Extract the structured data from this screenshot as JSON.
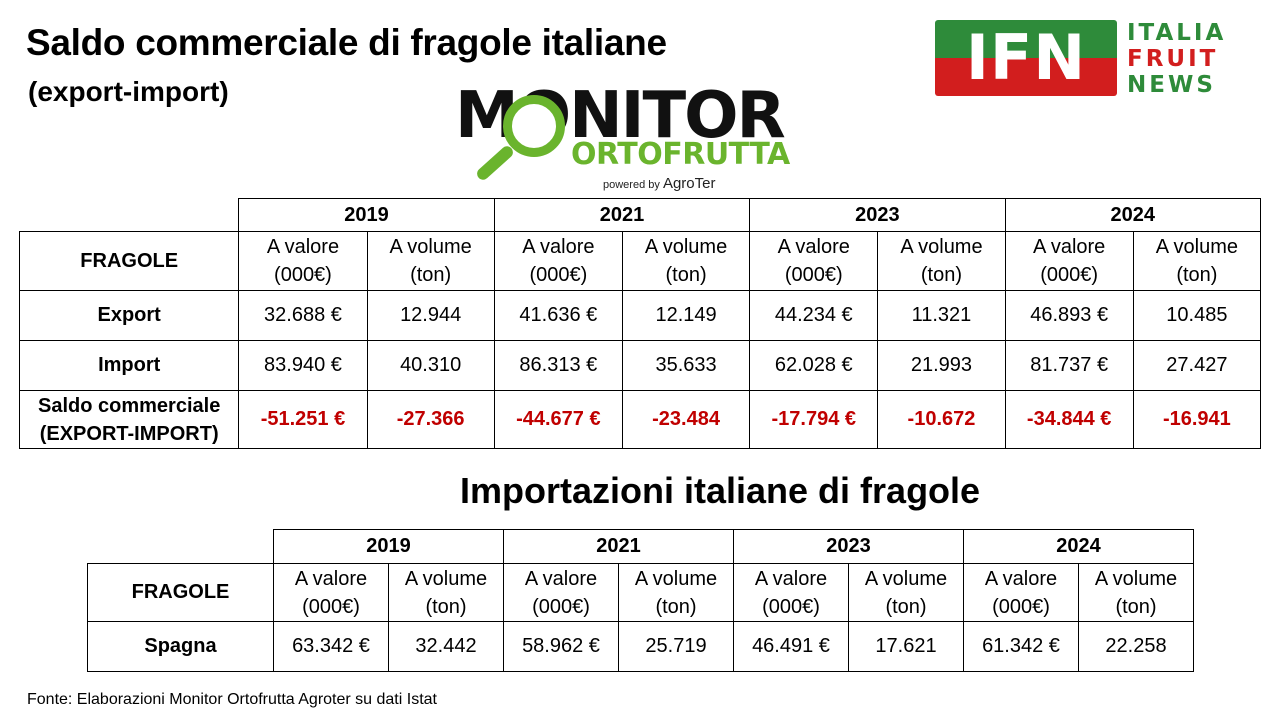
{
  "title": "Saldo commerciale di fragole italiane",
  "subtitle": "(export-import)",
  "ifn_logo": {
    "letters": "IFN",
    "words": [
      "ITALIA",
      "FRUIT",
      "NEWS"
    ],
    "colors": {
      "green": "#2e8b3a",
      "red": "#d21e1e"
    }
  },
  "monitor_logo": {
    "word": "MONITOR",
    "sub": "ORTOFRUTTA",
    "powered_prefix": "powered by",
    "powered_brand": "AgroTer",
    "color": "#6ab42d"
  },
  "table1": {
    "years": [
      "2019",
      "2021",
      "2023",
      "2024"
    ],
    "row_header": "FRAGOLE",
    "col_value": [
      "A valore",
      "(000€)"
    ],
    "col_volume": [
      "A volume",
      "(ton)"
    ],
    "rows": [
      {
        "label": [
          "Export"
        ],
        "cells": [
          "32.688 €",
          "12.944",
          "41.636 €",
          "12.149",
          "44.234 €",
          "11.321",
          "46.893 €",
          "10.485"
        ]
      },
      {
        "label": [
          "Import"
        ],
        "cells": [
          "83.940 €",
          "40.310",
          "86.313 €",
          "35.633",
          "62.028 €",
          "21.993",
          "81.737 €",
          "27.427"
        ]
      },
      {
        "label": [
          "Saldo commerciale",
          "(EXPORT-IMPORT)"
        ],
        "cells": [
          "-51.251 €",
          "-27.366",
          "-44.677 €",
          "-23.484",
          "-17.794 €",
          "-10.672",
          "-34.844 €",
          "-16.941"
        ]
      }
    ],
    "negative_color": "#c00000"
  },
  "section2_title": "Importazioni italiane di fragole",
  "table2": {
    "years": [
      "2019",
      "2021",
      "2023",
      "2024"
    ],
    "row_header": "FRAGOLE",
    "col_value": [
      "A valore",
      "(000€)"
    ],
    "col_volume": [
      "A volume",
      "(ton)"
    ],
    "rows": [
      {
        "label": [
          "Spagna"
        ],
        "cells": [
          "63.342 €",
          "32.442",
          "58.962 €",
          "25.719",
          "46.491 €",
          "17.621",
          "61.342 €",
          "22.258"
        ]
      }
    ]
  },
  "source": "Fonte: Elaborazioni Monitor Ortofrutta Agroter su dati Istat"
}
